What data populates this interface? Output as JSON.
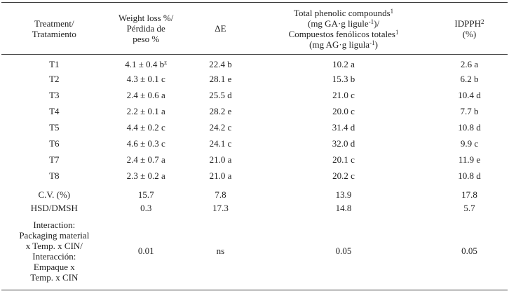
{
  "meta": {
    "background": "#ffffff",
    "text_color": "#1f1f1f",
    "rule_color": "#3d3d3d"
  },
  "table": {
    "columns": [
      {
        "id": "treatment",
        "header_lines": [
          "Treatment/",
          "Tratamiento"
        ]
      },
      {
        "id": "weight-loss",
        "header_lines": [
          "Weight loss %/",
          "Pérdida de",
          "peso %"
        ]
      },
      {
        "id": "delta-e",
        "header_lines": [
          "ΔE"
        ]
      },
      {
        "id": "phenolics",
        "header_lines": [
          "Total phenolic compounds^1^",
          "(mg GA·g ligule^-1^)/",
          "Compuestos fenólicos totales^1^",
          "(mg AG·g ligula^-1^)"
        ]
      },
      {
        "id": "idpph",
        "header_lines": [
          "IDPPH^2^",
          "(%)"
        ]
      }
    ],
    "rows": [
      {
        "id": "t1",
        "kind": "data",
        "cells": [
          "T1",
          "4.1 ± 0.4 b^z^",
          "22.4 b",
          "10.2 a",
          "2.6 a"
        ]
      },
      {
        "id": "t2",
        "kind": "data",
        "cells": [
          "T2",
          "4.3 ± 0.1 c",
          "28.1 e",
          "15.3 b",
          "6.2 b"
        ]
      },
      {
        "id": "t3",
        "kind": "data",
        "cells": [
          "T3",
          "2.4 ± 0.6 a",
          "25.5 d",
          "21.0 c",
          "10.4 d"
        ]
      },
      {
        "id": "t4",
        "kind": "data",
        "cells": [
          "T4",
          "2.2 ± 0.1 a",
          "28.2 e",
          "20.0 c",
          "7.7 b"
        ]
      },
      {
        "id": "t5",
        "kind": "data",
        "cells": [
          "T5",
          "4.4 ± 0.2 c",
          "24.2 c",
          "31.4 d",
          "10.8 d"
        ]
      },
      {
        "id": "t6",
        "kind": "data",
        "cells": [
          "T6",
          "4.6 ± 0.3 c",
          "24.1 c",
          "32.0 d",
          "9.9 c"
        ]
      },
      {
        "id": "t7",
        "kind": "data",
        "cells": [
          "T7",
          "2.4 ± 0.7 a",
          "21.0 a",
          "20.1 c",
          "11.9 e"
        ]
      },
      {
        "id": "t8",
        "kind": "data",
        "cells": [
          "T8",
          "2.3 ± 0.2 a",
          "21.0 a",
          "20.2 c",
          "10.8 d"
        ]
      },
      {
        "id": "cv",
        "kind": "stat",
        "cells": [
          "C.V. (%)",
          "15.7",
          "7.8",
          "13.9",
          "17.8"
        ]
      },
      {
        "id": "hsd",
        "kind": "stat",
        "cells": [
          "HSD/DMSH",
          "0.3",
          "17.3",
          "14.8",
          "5.7"
        ]
      },
      {
        "id": "interaction",
        "kind": "interaction",
        "cells": [
          [
            "Interaction:",
            "Packaging material",
            "x Temp. x CIN/",
            "Interacción:",
            "Empaque x",
            "Temp. x CIN"
          ],
          "0.01",
          "ns",
          "0.05",
          "0.05"
        ]
      }
    ]
  }
}
